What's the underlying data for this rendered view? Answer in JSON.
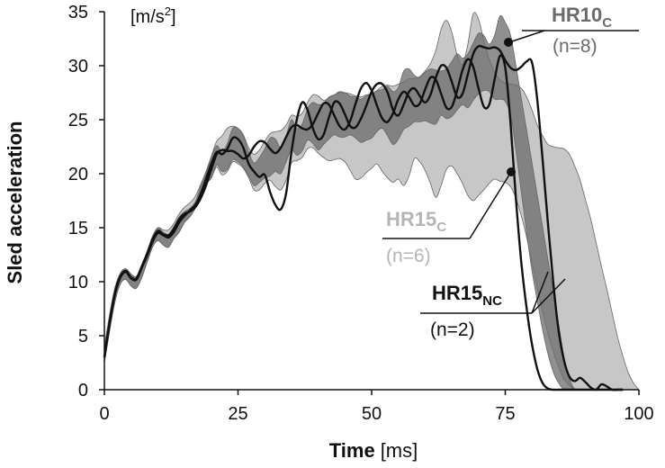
{
  "chart_data": {
    "type": "line",
    "xlabel_bold": "Time",
    "xlabel_unit": "[ms]",
    "ylabel": "Sled acceleration",
    "unit_label": "[m/s",
    "unit_sup": "2",
    "unit_close": "]",
    "xlim": [
      0,
      100
    ],
    "ylim": [
      0,
      35
    ],
    "x_ticks": [
      0,
      25,
      50,
      75,
      100
    ],
    "y_ticks": [
      0,
      5,
      10,
      15,
      20,
      25,
      30,
      35
    ],
    "grid": false,
    "colors": {
      "hr10c": "#6b6b6b",
      "hr15c": "#bdbdbd",
      "hr15nc": "#111111",
      "axis": "#111111"
    },
    "series": [
      {
        "name": "HR10",
        "subscript": "C",
        "n_label": "(n=8)",
        "style": "dark-gray band",
        "x": [
          0,
          1,
          2,
          3,
          4,
          5,
          6,
          7,
          8,
          9,
          10,
          11,
          12,
          13,
          14,
          15,
          16,
          17,
          18,
          19,
          20,
          21,
          22,
          23,
          24,
          25,
          26,
          27,
          28,
          29,
          30,
          31,
          32,
          33,
          34,
          35,
          36,
          37,
          38,
          39,
          40,
          41,
          42,
          43,
          44,
          45,
          46,
          47,
          48,
          49,
          50,
          51,
          52,
          53,
          54,
          55,
          56,
          57,
          58,
          59,
          60,
          61,
          62,
          63,
          64,
          65,
          66,
          67,
          68,
          69,
          70,
          71,
          72,
          73,
          74,
          75,
          76,
          77,
          78,
          79,
          80,
          81,
          82,
          83,
          84,
          85,
          86,
          87,
          88
        ],
        "upper": [
          4,
          7,
          9.5,
          10.8,
          11.2,
          10.7,
          10.5,
          11.6,
          12.8,
          14.2,
          15,
          14.6,
          14.4,
          15.1,
          16,
          16.5,
          16.8,
          17.4,
          18.8,
          20,
          21.5,
          22.6,
          22,
          22.8,
          24.2,
          24.2,
          23.5,
          22,
          21,
          21.5,
          22.3,
          23.3,
          23.2,
          22.4,
          23.5,
          25,
          24.2,
          24.6,
          26,
          26.6,
          26.4,
          26.5,
          27.1,
          27.3,
          27.6,
          27.5,
          27.2,
          27.1,
          26.9,
          27.2,
          27.4,
          27.7,
          27.8,
          28.1,
          27.6,
          28,
          29.5,
          29.7,
          29.1,
          28.9,
          29.4,
          29.7,
          29.6,
          29.5,
          29.7,
          30.4,
          31.1,
          30.7,
          31.1,
          32.1,
          33,
          32.8,
          32,
          32.8,
          34.6,
          34,
          32.8,
          30,
          27,
          24,
          21,
          18,
          15,
          12,
          9,
          6,
          3,
          1,
          0
        ],
        "lower": [
          2.5,
          5.5,
          8.2,
          9.8,
          10.2,
          9.6,
          9.4,
          10.4,
          11.8,
          13.2,
          13.8,
          13.4,
          13.2,
          14,
          14.6,
          15.5,
          16,
          16.8,
          17.8,
          19,
          19.6,
          20.8,
          20.2,
          20.4,
          21.3,
          21.1,
          20.6,
          19.8,
          18.9,
          19.2,
          19.6,
          19.8,
          20.2,
          20,
          21.1,
          22.2,
          21.7,
          22.1,
          23.1,
          22.8,
          22.2,
          22.7,
          23.2,
          23.6,
          23.4,
          23.4,
          23.6,
          23.3,
          22.9,
          23.1,
          23.3,
          23.9,
          24.2,
          23.5,
          22.7,
          23.2,
          24.1,
          24.4,
          24.8,
          24.8,
          24.9,
          24.7,
          24.6,
          25.4,
          25.1,
          25.3,
          25.9,
          26.4,
          26.1,
          26.8,
          27.4,
          27.7,
          27.6,
          26.9,
          26.9,
          26.7,
          25.4,
          22.1,
          18.3,
          14.5,
          11,
          8.2,
          5.5,
          3.3,
          1.6,
          0.6,
          0,
          0,
          0
        ]
      },
      {
        "name": "HR15",
        "subscript": "C",
        "n_label": "(n=6)",
        "style": "light-gray band",
        "x": [
          0,
          1,
          2,
          3,
          4,
          5,
          6,
          7,
          8,
          9,
          10,
          11,
          12,
          13,
          14,
          15,
          16,
          17,
          18,
          19,
          20,
          21,
          22,
          23,
          24,
          25,
          26,
          27,
          28,
          29,
          30,
          31,
          32,
          33,
          34,
          35,
          36,
          37,
          38,
          39,
          40,
          41,
          42,
          43,
          44,
          45,
          46,
          47,
          48,
          49,
          50,
          51,
          52,
          53,
          54,
          55,
          56,
          57,
          58,
          59,
          60,
          61,
          62,
          63,
          64,
          65,
          66,
          67,
          68,
          69,
          70,
          71,
          72,
          73,
          74,
          75,
          76,
          77,
          78,
          79,
          80,
          81,
          82,
          83,
          84,
          85,
          86,
          87,
          88,
          89,
          90,
          91,
          92,
          93,
          94,
          95,
          96,
          97,
          98,
          99,
          100
        ],
        "upper": [
          4,
          7,
          9.5,
          10.8,
          11.2,
          10.7,
          10.5,
          11.6,
          12.8,
          14.2,
          15,
          14.8,
          14.8,
          15.4,
          16.3,
          16.9,
          17.3,
          17.9,
          19,
          20.2,
          21.6,
          23,
          23.5,
          24.2,
          24.4,
          24.2,
          23.6,
          22.4,
          21.8,
          22.2,
          23,
          23.7,
          23.9,
          24,
          24.5,
          25.4,
          25.3,
          25.6,
          26.6,
          27.3,
          27.2,
          26.8,
          27,
          27.3,
          27.5,
          27.5,
          27.4,
          27.2,
          27.1,
          27.3,
          27.4,
          27.7,
          28.1,
          28.2,
          28.1,
          28.3,
          28.5,
          28.8,
          28.8,
          29,
          29.5,
          30.2,
          31.4,
          33.4,
          34.2,
          33.1,
          31,
          30.1,
          32,
          34.8,
          34.3,
          32.3,
          30.6,
          29.4,
          28.7,
          28.4,
          28.3,
          28.2,
          27.9,
          27.1,
          25.9,
          24.5,
          23.5,
          22.7,
          22.5,
          22.4,
          22.3,
          21.8,
          20.7,
          19.4,
          17.6,
          15.8,
          13.6,
          11.4,
          9.3,
          7.1,
          4.9,
          3.1,
          1.6,
          0.6,
          0
        ],
        "lower": [
          2.5,
          5.5,
          8.2,
          9.8,
          10.2,
          9.6,
          9.4,
          10.4,
          11.8,
          13.2,
          13.8,
          13.4,
          13.2,
          14,
          14.6,
          15.5,
          16,
          16.8,
          17.8,
          19,
          19.6,
          20.6,
          19.9,
          20.2,
          21.1,
          20.9,
          20.5,
          19.6,
          18.5,
          18.5,
          19.1,
          19.4,
          18.8,
          18.5,
          19.4,
          21,
          21.2,
          21.5,
          22.3,
          22.4,
          21.9,
          21.5,
          21.2,
          21.3,
          21.4,
          21.1,
          20.3,
          19.5,
          19.6,
          20.1,
          20.5,
          20.9,
          20.2,
          19.6,
          19.2,
          19.5,
          18.9,
          19.8,
          21.4,
          21.1,
          20.3,
          19.1,
          17.8,
          18.9,
          20.4,
          20.7,
          20,
          19.1,
          18,
          17.5,
          18,
          18.5,
          19.1,
          19.5,
          19.3,
          19.2,
          18.8,
          17.7,
          16.1,
          14.1,
          11.8,
          9.4,
          7.2,
          5.2,
          3.5,
          2.1,
          1,
          0.4,
          0,
          0,
          0,
          0,
          0,
          0,
          0,
          0,
          0,
          0,
          0,
          0,
          0
        ]
      },
      {
        "name": "HR15",
        "subscript": "NC",
        "n_label": "(n=2)",
        "style": "black lines",
        "x": [
          0,
          1,
          2,
          3,
          4,
          5,
          6,
          7,
          8,
          9,
          10,
          11,
          12,
          13,
          14,
          15,
          16,
          17,
          18,
          19,
          20,
          21,
          22,
          23,
          24,
          25,
          26,
          27,
          28,
          29,
          30,
          31,
          32,
          33,
          34,
          35,
          36,
          37,
          38,
          39,
          40,
          41,
          42,
          43,
          44,
          45,
          46,
          47,
          48,
          49,
          50,
          51,
          52,
          53,
          54,
          55,
          56,
          57,
          58,
          59,
          60,
          61,
          62,
          63,
          64,
          65,
          66,
          67,
          68,
          69,
          70,
          71,
          72,
          73,
          74,
          75,
          76,
          77,
          78,
          79,
          80,
          81,
          82,
          83,
          84,
          85,
          86,
          87,
          88,
          89,
          90,
          91,
          92,
          93,
          94,
          95,
          96,
          97
        ],
        "lines": [
          [
            3,
            6.2,
            8.9,
            10.4,
            10.9,
            10.3,
            10.2,
            11.3,
            12.4,
            13.7,
            14.5,
            14.3,
            14.1,
            14.6,
            15.5,
            16.1,
            16.6,
            17.1,
            18.1,
            19.5,
            20.9,
            22,
            21.8,
            22.3,
            23.3,
            23.2,
            22.4,
            20.9,
            20.2,
            19.7,
            19.9,
            18.3,
            17.1,
            16.7,
            18.2,
            22,
            25,
            26.6,
            25.9,
            24.2,
            23.2,
            23.6,
            25.2,
            26.6,
            26.5,
            25.5,
            24.4,
            24.3,
            25.1,
            26.3,
            27.6,
            28.3,
            28.3,
            27.5,
            25.9,
            25.4,
            26.4,
            27.6,
            27.9,
            27.2,
            26.6,
            27.3,
            28.9,
            30,
            29.8,
            28.5,
            27.1,
            27.4,
            29.2,
            31.1,
            31.8,
            31.7,
            31.6,
            31.7,
            31.4,
            30.5,
            29.8,
            29.6,
            29.9,
            30.4,
            30.3,
            26.8,
            21.2,
            15.3,
            9.8,
            5.4,
            2.7,
            1.2,
            0.8,
            1.1,
            0.7,
            0.2,
            0,
            0.5,
            0.3,
            0,
            0,
            0
          ],
          [
            3,
            6.3,
            9,
            10.5,
            11,
            10.4,
            10.3,
            11.4,
            12.6,
            13.9,
            14.7,
            14.4,
            14.3,
            14.9,
            15.8,
            16.3,
            16.5,
            16.9,
            17.7,
            18.9,
            20.4,
            21.8,
            22.2,
            22.1,
            22.1,
            21.8,
            21.4,
            21.7,
            22.5,
            23,
            22.9,
            22.3,
            21.9,
            22.4,
            23.4,
            24.3,
            24.5,
            24.2,
            24.1,
            24.6,
            25.6,
            26.5,
            26.4,
            25.4,
            24.4,
            24.1,
            24.9,
            26.5,
            27.9,
            28.4,
            27.7,
            26.3,
            25.1,
            24.8,
            25.6,
            26.9,
            27.6,
            27.1,
            26.3,
            26.5,
            27.8,
            28.9,
            28.7,
            27.4,
            26.1,
            26.2,
            27.7,
            29.6,
            30.6,
            29.9,
            27.9,
            26.2,
            26.4,
            28.7,
            30.9,
            29.8,
            24.6,
            17.6,
            11.8,
            7.5,
            4.2,
            1.9,
            0.6,
            0.1,
            0,
            0,
            0,
            0,
            0,
            0,
            0,
            0,
            0,
            0,
            0,
            0,
            0,
            0
          ]
        ]
      }
    ],
    "annotations": [
      {
        "name": "HR10",
        "subscript": "C",
        "n_label": "(n=8)"
      },
      {
        "name": "HR15",
        "subscript": "C",
        "n_label": "(n=6)"
      },
      {
        "name": "HR15",
        "subscript": "NC",
        "n_label": "(n=2)"
      }
    ]
  }
}
